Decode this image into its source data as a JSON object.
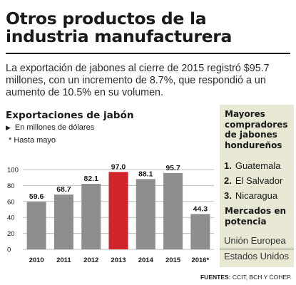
{
  "headline": "Otros productos de la industria manufacturera",
  "intro": "La exportación de jabones al cierre de 2015 registró $95.7 millones, con un incremento de 8.7%, que respondió a un aumento de 10.5% en su volumen.",
  "chart": {
    "heading": "Exportaciones de jabón",
    "unit_marker": "▶",
    "unit": "En millones de dólares",
    "note": "* Hasta mayo"
  },
  "chart_data": {
    "type": "bar",
    "title": "Exportaciones de jabón",
    "ylabel": "En millones de dólares",
    "categories": [
      "2010",
      "2011",
      "2012",
      "2013",
      "2014",
      "2015",
      "2016*"
    ],
    "values": [
      59.6,
      68.7,
      82.1,
      97.0,
      88.1,
      95.7,
      44.3
    ],
    "value_labels": [
      "59.6",
      "68.7",
      "82.1",
      "97.0",
      "88.1",
      "95.7",
      "44.3"
    ],
    "highlight_index": 3,
    "ylim": [
      0,
      100
    ],
    "yticks": [
      0,
      20,
      40,
      60,
      80,
      100
    ],
    "grid": true,
    "colors": {
      "bar": "#8d8d8d",
      "highlight": "#d0232a"
    }
  },
  "sidebar": {
    "buyers_title": "Mayores compradores de jabones hondureños",
    "buyers": [
      {
        "rank": "1.",
        "name": "Guatemala"
      },
      {
        "rank": "2.",
        "name": "El Salvador"
      },
      {
        "rank": "3.",
        "name": "Nicaragua"
      }
    ],
    "markets_title": "Mercados en potencia",
    "markets": [
      "Unión Europea",
      "Estados Unidos"
    ]
  },
  "sources": {
    "label": "FUENTES:",
    "text": "CCIT, BCH Y COHEP."
  },
  "colors": {
    "sidebar_bg": "#e9e8d4"
  }
}
